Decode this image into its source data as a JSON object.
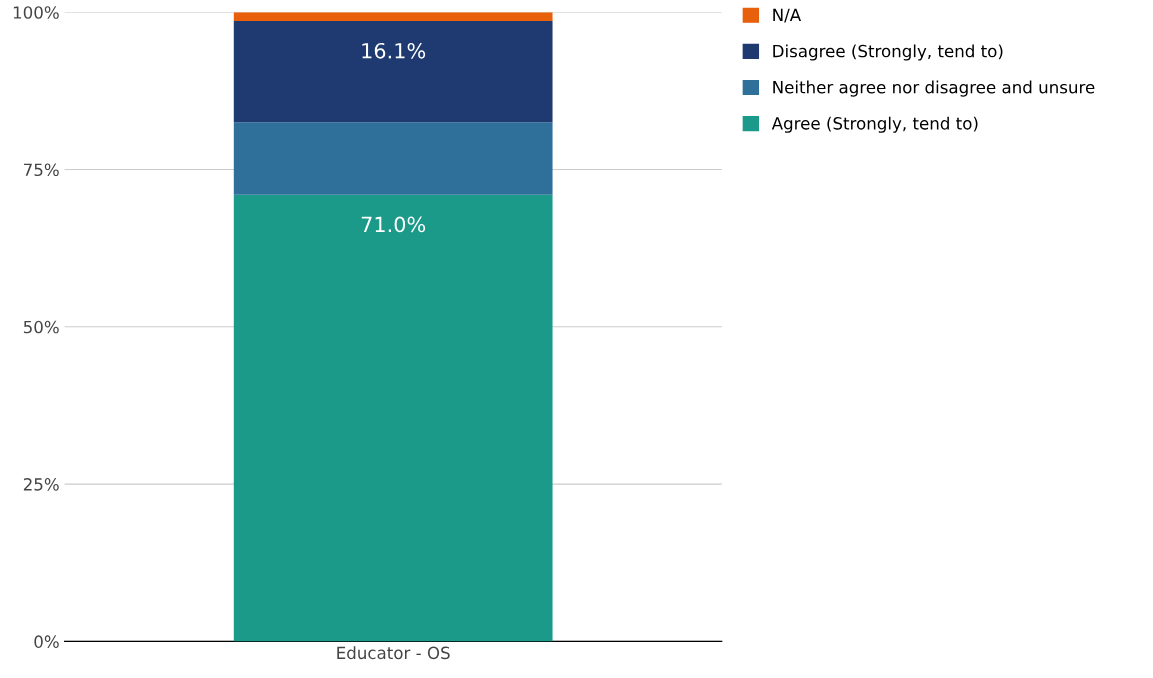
{
  "chart_data": {
    "type": "bar",
    "stacked": true,
    "categories": [
      "Educator - OS"
    ],
    "series": [
      {
        "name": "Agree (Strongly, tend to)",
        "color": "#1b9a8a",
        "values": [
          71.0
        ],
        "value_labels": [
          "71.0%"
        ]
      },
      {
        "name": "Neither agree nor disagree and unsure",
        "color": "#2e7099",
        "values": [
          11.5
        ],
        "value_labels": [
          null
        ]
      },
      {
        "name": "Disagree (Strongly, tend to)",
        "color": "#1f3a70",
        "values": [
          16.1
        ],
        "value_labels": [
          "16.1%"
        ]
      },
      {
        "name": "N/A",
        "color": "#e8600c",
        "values": [
          1.4
        ],
        "value_labels": [
          null
        ]
      }
    ],
    "ylim": [
      0,
      100
    ],
    "yticks": [
      {
        "value": 0,
        "label": "0%"
      },
      {
        "value": 25,
        "label": "25%"
      },
      {
        "value": 50,
        "label": "50%"
      },
      {
        "value": 75,
        "label": "75%"
      },
      {
        "value": 100,
        "label": "100%"
      }
    ],
    "grid": "y",
    "legend": "right"
  }
}
